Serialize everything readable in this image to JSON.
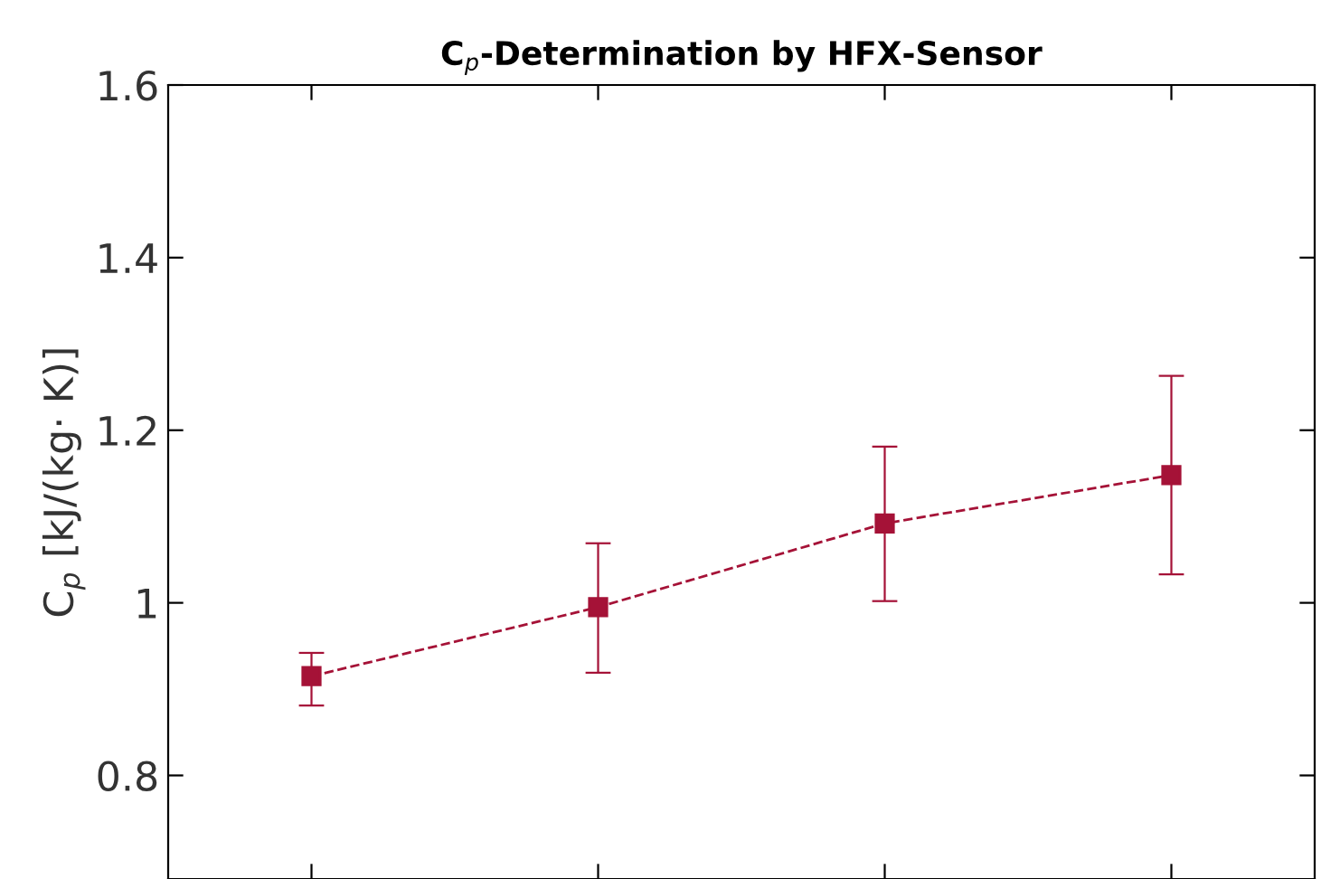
{
  "chart_data": {
    "type": "line",
    "title": "C$_{p}$-Determination by HFX-Sensor",
    "ylabel": "C$_{p}$ [kJ/(kg· K)]",
    "categories": [
      null,
      null,
      null,
      null
    ],
    "series": [
      {
        "color": "#a51237",
        "values": [
          0.915,
          0.995,
          1.092,
          1.148
        ],
        "errors": [
          [
            0.881,
            0.942
          ],
          [
            0.919,
            1.069
          ],
          [
            1.002,
            1.181
          ],
          [
            1.033,
            1.263
          ]
        ]
      }
    ],
    "ylim": [
      0.68,
      1.6
    ],
    "yticks": [
      {
        "value": 0.8,
        "label": "0.8"
      },
      1,
      {
        "value": 1.2,
        "label": "1.2"
      },
      {
        "value": 1.4,
        "label": "1.4"
      },
      {
        "value": 1.6,
        "label": "1.6"
      }
    ],
    "marker": "square",
    "line_style": "dashed",
    "grid": false,
    "tick_labels": "y"
  }
}
